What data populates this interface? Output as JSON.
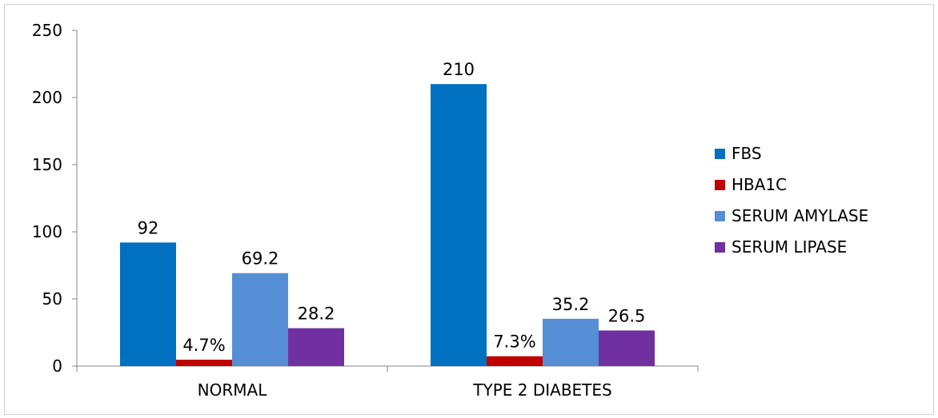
{
  "chart_data": {
    "type": "bar",
    "title": "",
    "xlabel": "",
    "ylabel": "",
    "categories": [
      "NORMAL",
      "TYPE 2 DIABETES"
    ],
    "ylim": [
      0,
      250
    ],
    "yticks": [
      0,
      50,
      100,
      150,
      200,
      250
    ],
    "grid": false,
    "legend_position": "right",
    "series": [
      {
        "name": "FBS",
        "color": "#0070C0",
        "values": [
          92,
          210
        ],
        "labels": [
          "92",
          "210"
        ]
      },
      {
        "name": "HBA1C",
        "color": "#C00000",
        "values": [
          4.7,
          7.3
        ],
        "labels": [
          "4.7%",
          "7.3%"
        ]
      },
      {
        "name": "SERUM AMYLASE",
        "color": "#558ED5",
        "values": [
          69.2,
          35.2
        ],
        "labels": [
          "69.2",
          "35.2"
        ]
      },
      {
        "name": "SERUM LIPASE",
        "color": "#7030A0",
        "values": [
          28.2,
          26.5
        ],
        "labels": [
          "28.2",
          "26.5"
        ]
      }
    ]
  }
}
